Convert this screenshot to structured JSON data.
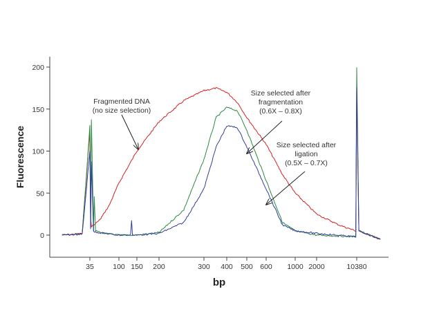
{
  "chart_data": {
    "type": "line",
    "title": "",
    "xlabel": "bp",
    "ylabel": "Fluorescence",
    "x_scale": "log (electropherogram sizing ladder)",
    "ylim": [
      -25,
      215
    ],
    "y_ticks": [
      0,
      50,
      100,
      150,
      200
    ],
    "x_ticks": [
      35,
      100,
      150,
      200,
      300,
      400,
      500,
      600,
      1000,
      2000,
      10380
    ],
    "x_tick_labels": [
      "35",
      "100",
      "150",
      "200",
      "300",
      "400",
      "500",
      "600",
      "1000",
      "2000",
      "10380"
    ],
    "grid": false,
    "series": [
      {
        "name": "Fragmented DNA (no size selection)",
        "color": "#d42020",
        "x": [
          20,
          30,
          35,
          36,
          37,
          40,
          50,
          70,
          100,
          150,
          200,
          250,
          300,
          350,
          400,
          450,
          500,
          600,
          800,
          1000,
          2000,
          5000,
          10000,
          10380,
          10800,
          16000
        ],
        "y": [
          0,
          2,
          125,
          20,
          10,
          12,
          18,
          35,
          62,
          100,
          135,
          160,
          172,
          175,
          170,
          158,
          140,
          108,
          72,
          50,
          25,
          12,
          5,
          170,
          5,
          -5
        ]
      },
      {
        "name": "Size selected after fragmentation (0.6X - 0.8X)",
        "color": "#2b8a3e",
        "x": [
          20,
          30,
          35,
          36,
          37,
          40,
          41,
          43,
          60,
          100,
          150,
          200,
          250,
          300,
          350,
          400,
          450,
          500,
          600,
          800,
          1000,
          2000,
          10000,
          10380,
          10800,
          16000
        ],
        "y": [
          0,
          1,
          130,
          10,
          138,
          5,
          45,
          5,
          2,
          0,
          0,
          3,
          30,
          90,
          140,
          152,
          148,
          125,
          65,
          15,
          5,
          0,
          -2,
          200,
          5,
          -5
        ]
      },
      {
        "name": "Size selected after ligation (0.5X - 0.7X)",
        "color": "#2f3d9c",
        "x": [
          20,
          30,
          35,
          36,
          37,
          40,
          60,
          100,
          130,
          133,
          136,
          150,
          200,
          250,
          300,
          350,
          400,
          450,
          500,
          600,
          800,
          1000,
          2000,
          10000,
          10380,
          10800,
          16000
        ],
        "y": [
          0,
          1,
          100,
          8,
          88,
          4,
          2,
          0,
          0,
          18,
          0,
          0,
          2,
          15,
          55,
          105,
          130,
          128,
          105,
          55,
          12,
          5,
          2,
          -2,
          175,
          5,
          -5
        ]
      }
    ],
    "annotations": [
      {
        "lines": [
          "Fragmented DNA",
          "(no size selection)"
        ]
      },
      {
        "lines": [
          "Size selected after",
          "fragmentation",
          "(0.6X – 0.8X)"
        ]
      },
      {
        "lines": [
          "Size selected after",
          "ligation",
          "(0.5X – 0.7X)"
        ]
      }
    ]
  }
}
